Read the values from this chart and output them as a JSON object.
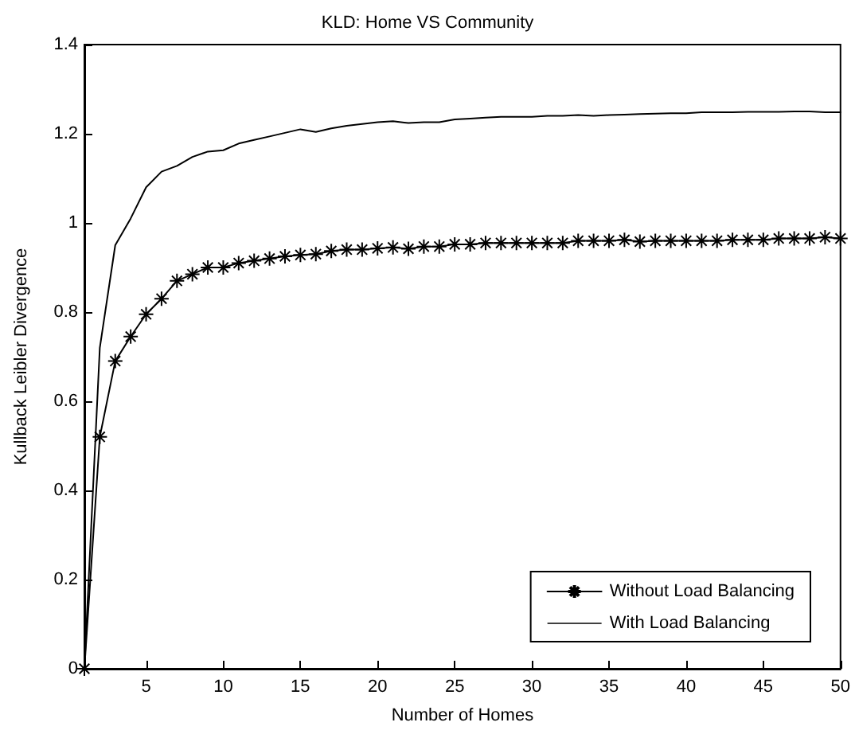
{
  "chart_data": {
    "type": "line",
    "title": "KLD: Home VS Community",
    "xlabel": "Number of Homes",
    "ylabel": "Kullback Leibler Divergence",
    "x": [
      1,
      2,
      3,
      4,
      5,
      6,
      7,
      8,
      9,
      10,
      11,
      12,
      13,
      14,
      15,
      16,
      17,
      18,
      19,
      20,
      21,
      22,
      23,
      24,
      25,
      26,
      27,
      28,
      29,
      30,
      31,
      32,
      33,
      34,
      35,
      36,
      37,
      38,
      39,
      40,
      41,
      42,
      43,
      44,
      45,
      46,
      47,
      48,
      49,
      50
    ],
    "series": [
      {
        "name": "Without Load Balancing",
        "color": "#000000",
        "marker": "cross",
        "values": [
          0,
          0.52,
          0.69,
          0.745,
          0.795,
          0.83,
          0.87,
          0.885,
          0.9,
          0.9,
          0.91,
          0.915,
          0.92,
          0.925,
          0.928,
          0.93,
          0.937,
          0.94,
          0.94,
          0.943,
          0.945,
          0.942,
          0.947,
          0.947,
          0.952,
          0.952,
          0.955,
          0.955,
          0.955,
          0.955,
          0.955,
          0.955,
          0.96,
          0.96,
          0.96,
          0.962,
          0.958,
          0.96,
          0.96,
          0.96,
          0.96,
          0.96,
          0.962,
          0.962,
          0.962,
          0.965,
          0.965,
          0.965,
          0.968,
          0.965
        ]
      },
      {
        "name": "With Load Balancing",
        "color": "#000000",
        "marker": "none",
        "values": [
          0,
          0.72,
          0.95,
          1.01,
          1.08,
          1.115,
          1.128,
          1.148,
          1.16,
          1.163,
          1.178,
          1.186,
          1.194,
          1.202,
          1.21,
          1.204,
          1.212,
          1.218,
          1.222,
          1.226,
          1.228,
          1.224,
          1.226,
          1.226,
          1.232,
          1.234,
          1.236,
          1.238,
          1.238,
          1.238,
          1.24,
          1.24,
          1.242,
          1.24,
          1.242,
          1.243,
          1.244,
          1.245,
          1.246,
          1.246,
          1.248,
          1.248,
          1.248,
          1.249,
          1.249,
          1.249,
          1.25,
          1.25,
          1.248,
          1.248
        ]
      }
    ],
    "xlim": [
      1,
      50
    ],
    "xticks": [
      5,
      10,
      15,
      20,
      25,
      30,
      35,
      40,
      45,
      50
    ],
    "ylim": [
      0,
      1.4
    ],
    "yticks": [
      0,
      0.2,
      0.4,
      0.6,
      0.8,
      1,
      1.2,
      1.4
    ],
    "grid": false,
    "legend": "bottom right",
    "line_style": "solid"
  }
}
